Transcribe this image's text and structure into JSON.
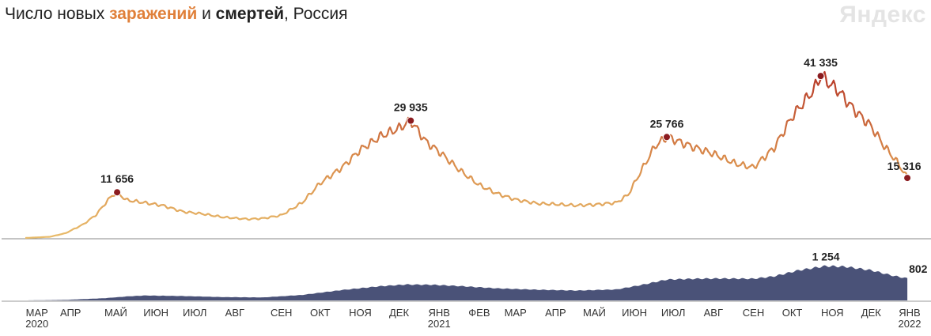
{
  "header": {
    "title_part1": "Число новых ",
    "title_infections": "заражений",
    "title_part2": " и ",
    "title_deaths": "смертей",
    "title_part3": ", Россия",
    "brand": "Яндекс"
  },
  "colors": {
    "infections_low": "#e8bb6a",
    "infections_high": "#b02a22",
    "deaths_fill": "#4a5278",
    "peak_marker": "#8b1c20"
  },
  "chart_data": [
    {
      "type": "line",
      "name": "infections",
      "x_start": "2020-03-01",
      "x_end": "2022-01-15",
      "ylim": [
        0,
        46000
      ],
      "points": [
        [
          "2020-03-01",
          0
        ],
        [
          "2020-03-20",
          300
        ],
        [
          "2020-04-01",
          1200
        ],
        [
          "2020-04-15",
          3500
        ],
        [
          "2020-04-25",
          6000
        ],
        [
          "2020-05-01",
          8500
        ],
        [
          "2020-05-07",
          10800
        ],
        [
          "2020-05-11",
          11656
        ],
        [
          "2020-05-18",
          9700
        ],
        [
          "2020-06-01",
          9000
        ],
        [
          "2020-06-15",
          8300
        ],
        [
          "2020-07-01",
          6700
        ],
        [
          "2020-07-15",
          6200
        ],
        [
          "2020-08-01",
          5300
        ],
        [
          "2020-08-20",
          4800
        ],
        [
          "2020-09-01",
          5000
        ],
        [
          "2020-09-15",
          5800
        ],
        [
          "2020-10-01",
          9000
        ],
        [
          "2020-10-15",
          14000
        ],
        [
          "2020-11-01",
          18000
        ],
        [
          "2020-11-15",
          22500
        ],
        [
          "2020-12-01",
          26000
        ],
        [
          "2020-12-15",
          28000
        ],
        [
          "2020-12-24",
          29935
        ],
        [
          "2021-01-05",
          24500
        ],
        [
          "2021-01-15",
          22000
        ],
        [
          "2021-02-01",
          17000
        ],
        [
          "2021-02-15",
          13500
        ],
        [
          "2021-03-01",
          11300
        ],
        [
          "2021-03-15",
          9800
        ],
        [
          "2021-04-01",
          8800
        ],
        [
          "2021-04-15",
          8600
        ],
        [
          "2021-05-01",
          8300
        ],
        [
          "2021-05-15",
          8500
        ],
        [
          "2021-06-01",
          9000
        ],
        [
          "2021-06-10",
          11000
        ],
        [
          "2021-06-20",
          17000
        ],
        [
          "2021-07-01",
          23500
        ],
        [
          "2021-07-10",
          25766
        ],
        [
          "2021-07-20",
          24500
        ],
        [
          "2021-08-01",
          23000
        ],
        [
          "2021-08-15",
          21500
        ],
        [
          "2021-09-01",
          19000
        ],
        [
          "2021-09-15",
          18000
        ],
        [
          "2021-10-01",
          23000
        ],
        [
          "2021-10-15",
          31000
        ],
        [
          "2021-11-01",
          38000
        ],
        [
          "2021-11-06",
          41335
        ],
        [
          "2021-11-20",
          37500
        ],
        [
          "2021-12-01",
          33000
        ],
        [
          "2021-12-15",
          28500
        ],
        [
          "2021-12-25",
          23500
        ],
        [
          "2022-01-05",
          19000
        ],
        [
          "2022-01-12",
          15316
        ]
      ],
      "peaks": [
        {
          "date": "2020-05-11",
          "value": 11656,
          "label": "11 656"
        },
        {
          "date": "2020-12-24",
          "value": 29935,
          "label": "29 935"
        },
        {
          "date": "2021-07-10",
          "value": 25766,
          "label": "25 766"
        },
        {
          "date": "2021-11-06",
          "value": 41335,
          "label": "41 335"
        },
        {
          "date": "2022-01-12",
          "value": 15316,
          "label": "15 316"
        }
      ]
    },
    {
      "type": "area",
      "name": "deaths",
      "ylim": [
        0,
        1500
      ],
      "points": [
        [
          "2020-03-01",
          0
        ],
        [
          "2020-04-01",
          20
        ],
        [
          "2020-05-01",
          80
        ],
        [
          "2020-05-20",
          150
        ],
        [
          "2020-06-01",
          180
        ],
        [
          "2020-07-01",
          160
        ],
        [
          "2020-08-01",
          120
        ],
        [
          "2020-09-01",
          110
        ],
        [
          "2020-10-01",
          200
        ],
        [
          "2020-11-01",
          380
        ],
        [
          "2020-12-01",
          520
        ],
        [
          "2020-12-20",
          580
        ],
        [
          "2021-01-10",
          570
        ],
        [
          "2021-02-01",
          520
        ],
        [
          "2021-03-01",
          440
        ],
        [
          "2021-04-01",
          390
        ],
        [
          "2021-05-01",
          360
        ],
        [
          "2021-06-01",
          400
        ],
        [
          "2021-06-20",
          560
        ],
        [
          "2021-07-10",
          760
        ],
        [
          "2021-08-01",
          790
        ],
        [
          "2021-08-20",
          800
        ],
        [
          "2021-09-15",
          790
        ],
        [
          "2021-10-01",
          880
        ],
        [
          "2021-10-20",
          1100
        ],
        [
          "2021-11-10",
          1254
        ],
        [
          "2021-11-25",
          1230
        ],
        [
          "2021-12-15",
          1100
        ],
        [
          "2022-01-01",
          900
        ],
        [
          "2022-01-12",
          802
        ]
      ],
      "labels": [
        {
          "date": "2021-11-10",
          "value": 1254,
          "label": "1 254"
        },
        {
          "date": "2022-01-12",
          "value": 802,
          "label": "802"
        }
      ]
    }
  ],
  "axis": {
    "ticks": [
      {
        "date": "2020-03-10",
        "label": "МАР",
        "year": "2020"
      },
      {
        "date": "2020-04-05",
        "label": "АПР"
      },
      {
        "date": "2020-05-10",
        "label": "МАЙ"
      },
      {
        "date": "2020-06-10",
        "label": "ИЮН"
      },
      {
        "date": "2020-07-10",
        "label": "ИЮЛ"
      },
      {
        "date": "2020-08-10",
        "label": "АВГ"
      },
      {
        "date": "2020-09-15",
        "label": "СЕН"
      },
      {
        "date": "2020-10-15",
        "label": "ОКТ"
      },
      {
        "date": "2020-11-15",
        "label": "НОЯ"
      },
      {
        "date": "2020-12-15",
        "label": "ДЕК"
      },
      {
        "date": "2021-01-15",
        "label": "ЯНВ",
        "year": "2021"
      },
      {
        "date": "2021-02-15",
        "label": "ФЕВ"
      },
      {
        "date": "2021-03-15",
        "label": "МАР"
      },
      {
        "date": "2021-04-15",
        "label": "АПР"
      },
      {
        "date": "2021-05-15",
        "label": "МАЙ"
      },
      {
        "date": "2021-06-15",
        "label": "ИЮН"
      },
      {
        "date": "2021-07-15",
        "label": "ИЮЛ"
      },
      {
        "date": "2021-08-15",
        "label": "АВГ"
      },
      {
        "date": "2021-09-15",
        "label": "СЕН"
      },
      {
        "date": "2021-10-15",
        "label": "ОКТ"
      },
      {
        "date": "2021-11-15",
        "label": "НОЯ"
      },
      {
        "date": "2021-12-15",
        "label": "ДЕК"
      },
      {
        "date": "2022-01-15",
        "label": "ЯНВ",
        "year": "2022"
      }
    ]
  }
}
